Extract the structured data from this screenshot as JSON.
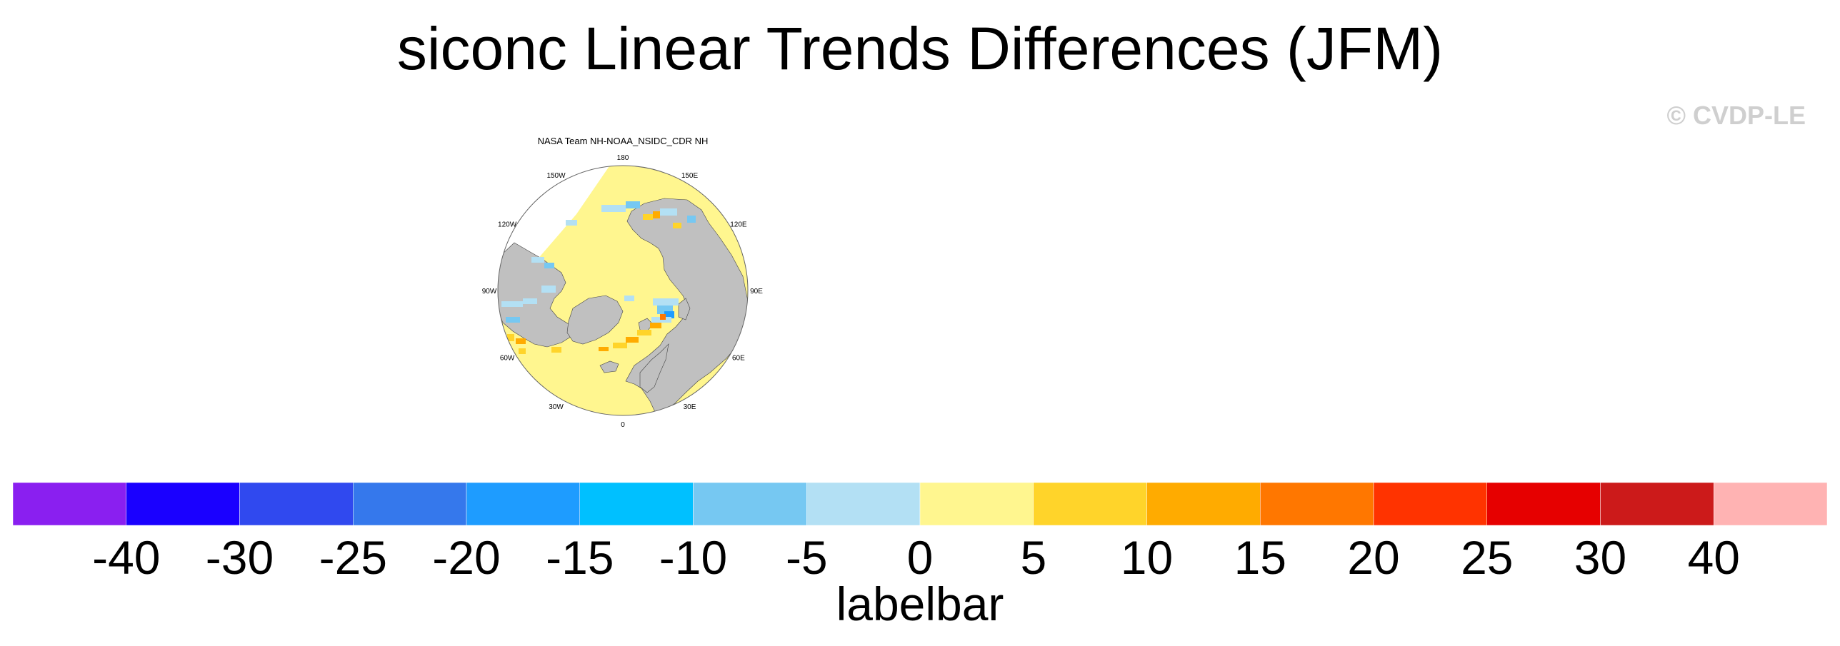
{
  "title": "siconc Linear Trends Differences (JFM)",
  "watermark": "© CVDP-LE",
  "panel": {
    "title": "NASA Team NH-NOAA_NSIDC_CDR NH",
    "lon_labels": [
      {
        "lon": 180,
        "text": "180"
      },
      {
        "lon": 150,
        "text": "150E"
      },
      {
        "lon": 120,
        "text": "120E"
      },
      {
        "lon": 90,
        "text": "90E"
      },
      {
        "lon": 60,
        "text": "60E"
      },
      {
        "lon": 30,
        "text": "30E"
      },
      {
        "lon": 0,
        "text": "0"
      },
      {
        "lon": -30,
        "text": "30W"
      },
      {
        "lon": -60,
        "text": "60W"
      },
      {
        "lon": -90,
        "text": "90W"
      },
      {
        "lon": -120,
        "text": "120W"
      },
      {
        "lon": -150,
        "text": "150W"
      }
    ],
    "colors": {
      "land": "#c0c0c0",
      "ocean_zero": "#fff68f",
      "missing": "#ffffff"
    }
  },
  "colorbar": {
    "label": "labelbar",
    "colors": [
      "#8a1ff0",
      "#1a00ff",
      "#3049ef",
      "#3578ec",
      "#1e9cff",
      "#00c0ff",
      "#76c8f2",
      "#b3e0f4",
      "#fff68f",
      "#ffd42a",
      "#ffab00",
      "#ff7700",
      "#ff3300",
      "#e60000",
      "#cc1a1a",
      "#ffb3b3"
    ],
    "ticks": [
      "-40",
      "-30",
      "-25",
      "-20",
      "-15",
      "-10",
      "-5",
      "0",
      "5",
      "10",
      "15",
      "20",
      "25",
      "30",
      "40"
    ]
  }
}
